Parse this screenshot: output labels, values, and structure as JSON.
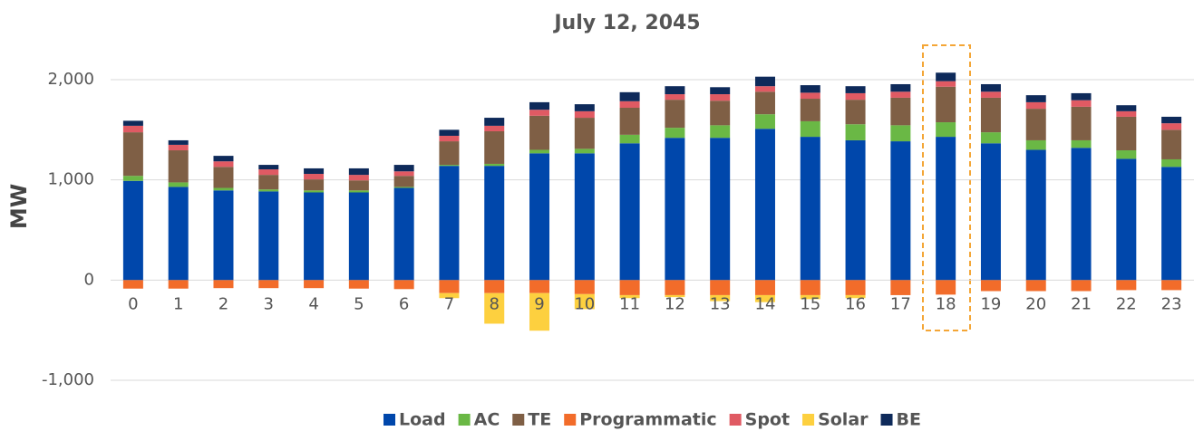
{
  "chart_data": {
    "type": "stacked_bar",
    "title": "July 12, 2045",
    "y_label": "MW",
    "categories": [
      "0",
      "1",
      "2",
      "3",
      "4",
      "5",
      "6",
      "7",
      "8",
      "9",
      "10",
      "11",
      "12",
      "13",
      "14",
      "15",
      "16",
      "17",
      "18",
      "19",
      "20",
      "21",
      "22",
      "23"
    ],
    "series": [
      {
        "name": "Load",
        "color": "#0047ab",
        "values": [
          990,
          930,
          895,
          885,
          875,
          875,
          920,
          1140,
          1140,
          1265,
          1265,
          1365,
          1420,
          1420,
          1510,
          1430,
          1395,
          1385,
          1430,
          1365,
          1300,
          1320,
          1210,
          1130
        ]
      },
      {
        "name": "AC",
        "color": "#6ab845",
        "values": [
          50,
          45,
          25,
          20,
          20,
          20,
          10,
          10,
          20,
          35,
          45,
          85,
          100,
          125,
          145,
          155,
          160,
          160,
          145,
          110,
          95,
          75,
          85,
          75
        ]
      },
      {
        "name": "TE",
        "color": "#7f5f45",
        "values": [
          435,
          320,
          210,
          145,
          110,
          100,
          110,
          235,
          325,
          340,
          310,
          270,
          280,
          245,
          225,
          225,
          245,
          275,
          355,
          345,
          315,
          335,
          335,
          295
        ]
      },
      {
        "name": "Programmatic",
        "color": "#f26c2a",
        "values": [
          -85,
          -85,
          -80,
          -80,
          -80,
          -85,
          -90,
          -130,
          -130,
          -130,
          -140,
          -150,
          -150,
          -150,
          -150,
          -150,
          -150,
          -150,
          -145,
          -110,
          -110,
          -110,
          -100,
          -100
        ]
      },
      {
        "name": "Spot",
        "color": "#e05a63",
        "values": [
          65,
          55,
          55,
          55,
          55,
          55,
          45,
          55,
          55,
          60,
          65,
          65,
          55,
          65,
          55,
          60,
          65,
          60,
          55,
          60,
          65,
          65,
          55,
          65
        ]
      },
      {
        "name": "Solar",
        "color": "#fdd03f",
        "values": [
          0,
          0,
          0,
          0,
          0,
          0,
          0,
          -50,
          -305,
          -375,
          -150,
          -30,
          -20,
          -60,
          -70,
          -40,
          -30,
          0,
          0,
          0,
          0,
          0,
          0,
          0
        ]
      },
      {
        "name": "BE",
        "color": "#0e2a5a",
        "values": [
          50,
          45,
          55,
          45,
          55,
          65,
          65,
          60,
          80,
          75,
          70,
          90,
          80,
          70,
          95,
          75,
          70,
          75,
          85,
          75,
          70,
          70,
          60,
          65
        ]
      }
    ],
    "ylim": [
      -1000,
      2000
    ],
    "yticks": [
      {
        "value": -1000,
        "label": "-1,000"
      },
      0,
      {
        "value": 1000,
        "label": "1,000"
      },
      {
        "value": 2000,
        "label": "2,000"
      }
    ],
    "grid": true,
    "legend": "bottom"
  }
}
